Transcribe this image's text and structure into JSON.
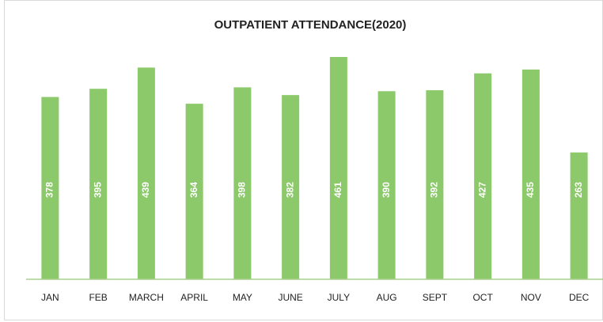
{
  "chart_data": {
    "type": "bar",
    "title": "OUTPATIENT ATTENDANCE(2020)",
    "categories": [
      "JAN",
      "FEB",
      "MARCH",
      "APRIL",
      "MAY",
      "JUNE",
      "JULY",
      "AUG",
      "SEPT",
      "OCT",
      "NOV",
      "DEC"
    ],
    "values": [
      378,
      395,
      439,
      364,
      398,
      382,
      461,
      390,
      392,
      427,
      435,
      263
    ],
    "color": "#8cc96a"
  }
}
